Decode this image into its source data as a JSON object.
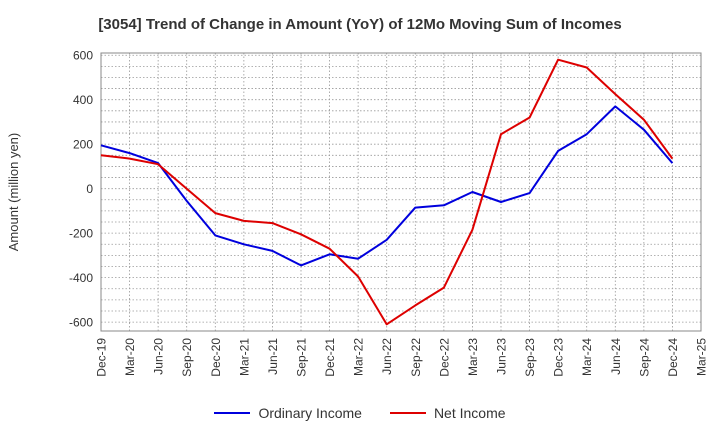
{
  "chart_data": {
    "type": "line",
    "title": "[3054]  Trend of Change in Amount (YoY) of 12Mo Moving Sum of Incomes",
    "xlabel": "",
    "ylabel": "Amount (million yen)",
    "ylim": [
      -640,
      610
    ],
    "yticks": [
      600,
      400,
      200,
      0,
      -200,
      -400,
      -600
    ],
    "grid": true,
    "legend_position": "bottom",
    "categories": [
      "Dec-19",
      "Mar-20",
      "Jun-20",
      "Sep-20",
      "Dec-20",
      "Mar-21",
      "Jun-21",
      "Sep-21",
      "Dec-21",
      "Mar-22",
      "Jun-22",
      "Sep-22",
      "Dec-22",
      "Mar-23",
      "Jun-23",
      "Sep-23",
      "Dec-23",
      "Mar-24",
      "Jun-24",
      "Sep-24",
      "Dec-24",
      "Mar-25"
    ],
    "series": [
      {
        "name": "Ordinary Income",
        "color": "#0000dd",
        "values": [
          195,
          160,
          115,
          -55,
          -210,
          -250,
          -280,
          -345,
          -295,
          -315,
          -230,
          -85,
          -75,
          -15,
          -60,
          -20,
          170,
          245,
          370,
          265,
          115,
          null
        ]
      },
      {
        "name": "Net Income",
        "color": "#dd0000",
        "values": [
          150,
          135,
          110,
          0,
          -110,
          -145,
          -155,
          -205,
          -270,
          -395,
          -610,
          -525,
          -445,
          -185,
          245,
          320,
          580,
          545,
          425,
          310,
          135,
          null
        ]
      }
    ]
  }
}
